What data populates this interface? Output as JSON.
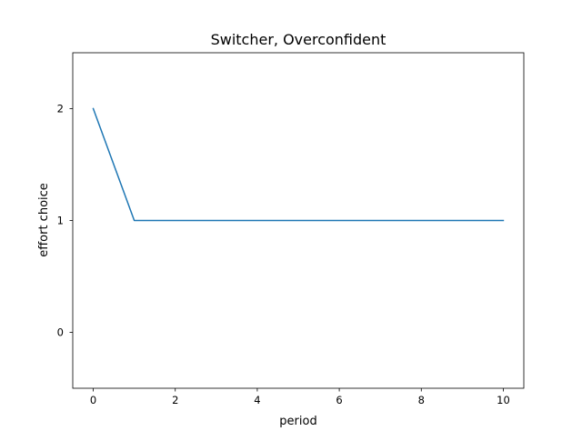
{
  "chart_data": {
    "type": "line",
    "title": "Switcher, Overconfident",
    "xlabel": "period",
    "ylabel": "effort choice",
    "xlim": [
      -0.5,
      10.5
    ],
    "ylim": [
      -0.5,
      2.5
    ],
    "xticks": [
      0,
      2,
      4,
      6,
      8,
      10
    ],
    "yticks": [
      0,
      1,
      2
    ],
    "grid": false,
    "series": [
      {
        "color": "#1f77b4",
        "x": [
          0,
          1,
          2,
          3,
          4,
          5,
          6,
          7,
          8,
          9,
          10
        ],
        "y": [
          2,
          1,
          1,
          1,
          1,
          1,
          1,
          1,
          1,
          1,
          1
        ]
      }
    ]
  }
}
